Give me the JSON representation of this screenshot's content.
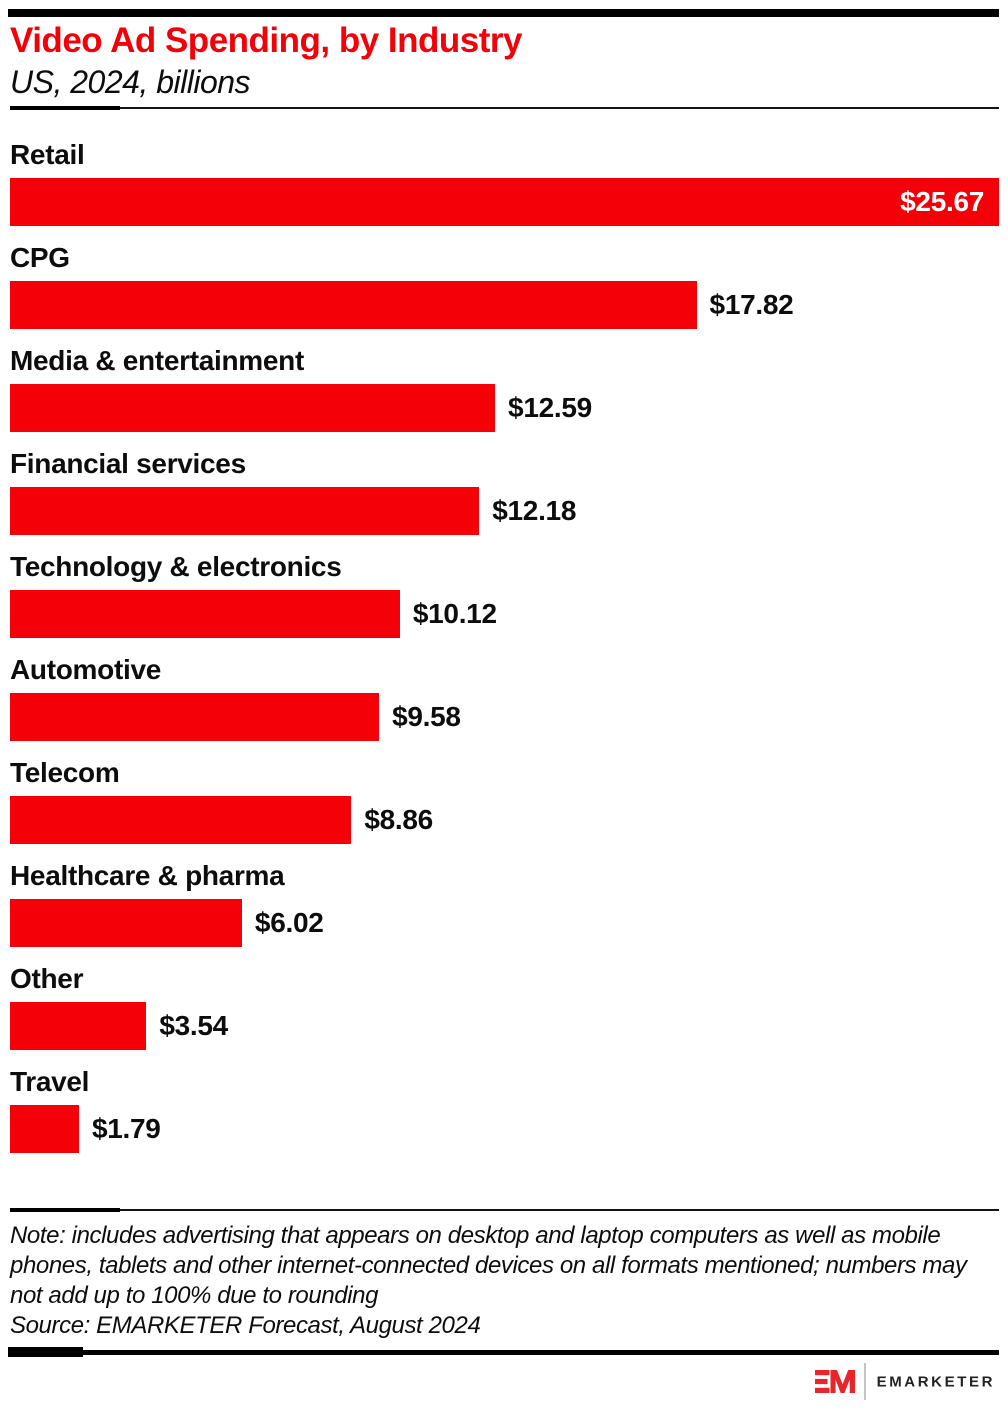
{
  "header": {
    "title": "Video Ad Spending, by Industry",
    "subtitle": "US, 2024, billions"
  },
  "chart_data": {
    "type": "bar",
    "orientation": "horizontal",
    "title": "Video Ad Spending, by Industry",
    "subtitle": "US, 2024, billions",
    "unit": "billions of US dollars",
    "categories": [
      "Retail",
      "CPG",
      "Media & entertainment",
      "Financial services",
      "Technology & electronics",
      "Automotive",
      "Telecom",
      "Healthcare & pharma",
      "Other",
      "Travel"
    ],
    "values": [
      25.67,
      17.82,
      12.59,
      12.18,
      10.12,
      9.58,
      8.86,
      6.02,
      3.54,
      1.79
    ],
    "value_labels": [
      "$25.67",
      "$17.82",
      "$12.59",
      "$12.18",
      "$10.12",
      "$9.58",
      "$8.86",
      "$6.02",
      "$3.54",
      "$1.79"
    ],
    "xlim": [
      0,
      25.67
    ],
    "bar_color": "#F40009",
    "grid": false,
    "legend": false,
    "value_label_inside_first_bar": true
  },
  "footer": {
    "note": "Note: includes advertising that appears on desktop and laptop computers as well as mobile\nphones, tablets and other internet-connected devices on all formats mentioned; numbers may\nnot add up to 100% due to rounding",
    "source": "Source: EMARKETER Forecast, August 2024"
  },
  "branding": {
    "logo_monogram": "EM",
    "logo_wordmark": "EMARKETER",
    "logo_red": "#E9252C"
  },
  "colors": {
    "accent_red": "#F40009",
    "text_black": "#0D0D0D",
    "border_black": "#000000"
  }
}
